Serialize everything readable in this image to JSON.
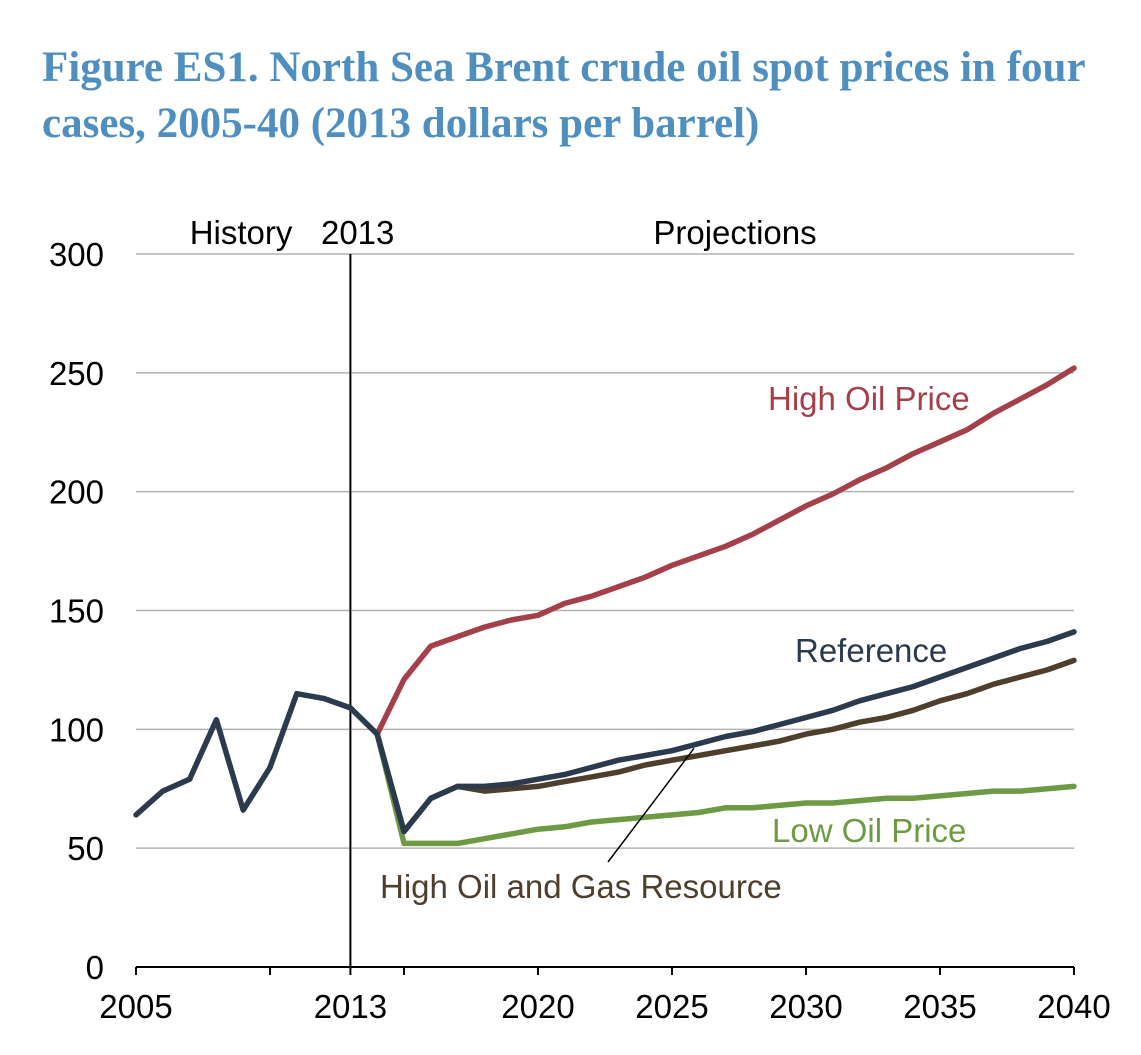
{
  "chart_data": {
    "type": "line",
    "title": "Figure ES1. North Sea Brent crude oil spot prices in four cases, 2005-40 (2013 dollars per barrel)",
    "xlabel": "",
    "ylabel": "",
    "xlim": [
      2005,
      2040
    ],
    "ylim": [
      0,
      300
    ],
    "x_ticks": [
      2005,
      2013,
      2020,
      2025,
      2030,
      2035,
      2040
    ],
    "y_ticks": [
      0,
      50,
      100,
      150,
      200,
      250,
      300
    ],
    "grid": true,
    "divider": {
      "x": 2013,
      "left_label": "History",
      "right_label": "2013",
      "projection_label": "Projections"
    },
    "history": {
      "color": "#2b3a4c",
      "x": [
        2005,
        2006,
        2007,
        2008,
        2009,
        2010,
        2011,
        2012,
        2013,
        2014
      ],
      "y": [
        64,
        74,
        79,
        104,
        66,
        84,
        115,
        113,
        109,
        98
      ]
    },
    "series": [
      {
        "name": "High Oil Price",
        "color": "#a5404a",
        "x": [
          2014,
          2015,
          2016,
          2017,
          2018,
          2019,
          2020,
          2021,
          2022,
          2023,
          2024,
          2025,
          2026,
          2027,
          2028,
          2029,
          2030,
          2031,
          2032,
          2033,
          2034,
          2035,
          2036,
          2037,
          2038,
          2039,
          2040
        ],
        "y": [
          98,
          121,
          135,
          139,
          143,
          146,
          148,
          153,
          156,
          160,
          164,
          169,
          173,
          177,
          182,
          188,
          194,
          199,
          205,
          210,
          216,
          221,
          226,
          233,
          239,
          245,
          252
        ]
      },
      {
        "name": "Reference",
        "color": "#2b3a4c",
        "x": [
          2014,
          2015,
          2016,
          2017,
          2018,
          2019,
          2020,
          2021,
          2022,
          2023,
          2024,
          2025,
          2026,
          2027,
          2028,
          2029,
          2030,
          2031,
          2032,
          2033,
          2034,
          2035,
          2036,
          2037,
          2038,
          2039,
          2040
        ],
        "y": [
          98,
          57,
          71,
          76,
          76,
          77,
          79,
          81,
          84,
          87,
          89,
          91,
          94,
          97,
          99,
          102,
          105,
          108,
          112,
          115,
          118,
          122,
          126,
          130,
          134,
          137,
          141
        ]
      },
      {
        "name": "High Oil and Gas Resource",
        "color": "#4e3f2c",
        "x": [
          2014,
          2015,
          2016,
          2017,
          2018,
          2019,
          2020,
          2021,
          2022,
          2023,
          2024,
          2025,
          2026,
          2027,
          2028,
          2029,
          2030,
          2031,
          2032,
          2033,
          2034,
          2035,
          2036,
          2037,
          2038,
          2039,
          2040
        ],
        "y": [
          98,
          57,
          71,
          76,
          74,
          75,
          76,
          78,
          80,
          82,
          85,
          87,
          89,
          91,
          93,
          95,
          98,
          100,
          103,
          105,
          108,
          112,
          115,
          119,
          122,
          125,
          129
        ]
      },
      {
        "name": "Low Oil Price",
        "color": "#6e9a43",
        "x": [
          2014,
          2015,
          2016,
          2017,
          2018,
          2019,
          2020,
          2021,
          2022,
          2023,
          2024,
          2025,
          2026,
          2027,
          2028,
          2029,
          2030,
          2031,
          2032,
          2033,
          2034,
          2035,
          2036,
          2037,
          2038,
          2039,
          2040
        ],
        "y": [
          98,
          52,
          52,
          52,
          54,
          56,
          58,
          59,
          61,
          62,
          63,
          64,
          65,
          67,
          67,
          68,
          69,
          69,
          70,
          71,
          71,
          72,
          73,
          74,
          74,
          75,
          76
        ]
      }
    ]
  }
}
